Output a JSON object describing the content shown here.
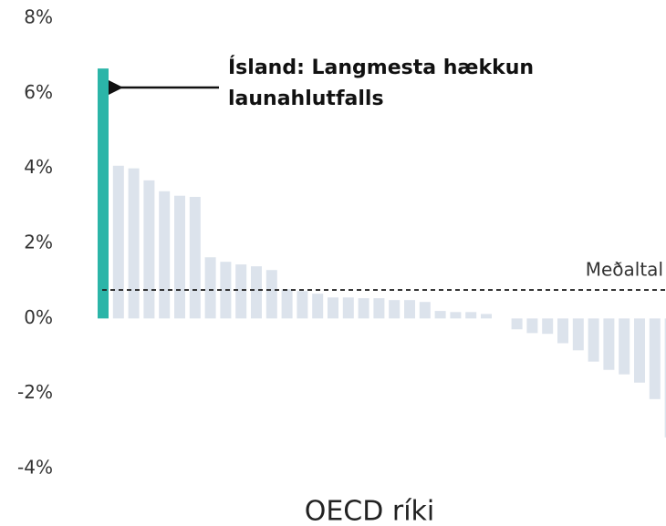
{
  "chart_data": {
    "type": "bar",
    "xlabel": "OECD ríki",
    "annotation": [
      "Ísland: Langmesta hækkun",
      "launahlutfalls"
    ],
    "mean": {
      "label": "Meðaltal",
      "value": 0.76
    },
    "categories": [
      null,
      null,
      null,
      null,
      null,
      null,
      null,
      null,
      null,
      null,
      null,
      null,
      null,
      null,
      null,
      null,
      null,
      null,
      null,
      null,
      null,
      null,
      null,
      null,
      null,
      null,
      null,
      null,
      null,
      null,
      null,
      null,
      null,
      null,
      null,
      null,
      null,
      null
    ],
    "values": [
      6.66,
      4.07,
      4.0,
      3.68,
      3.39,
      3.27,
      3.24,
      1.63,
      1.51,
      1.44,
      1.39,
      1.29,
      0.78,
      0.73,
      0.66,
      0.56,
      0.56,
      0.54,
      0.54,
      0.49,
      0.49,
      0.44,
      0.2,
      0.17,
      0.17,
      0.12,
      0,
      -0.29,
      -0.39,
      -0.41,
      -0.66,
      -0.85,
      -1.15,
      -1.37,
      -1.49,
      -1.71,
      -2.15,
      -3.17
    ],
    "color": "#dce3ec",
    "highlight": {
      "index": 0,
      "color": "#2bb5a8"
    },
    "ylim": [
      -4,
      8
    ],
    "yticks": [
      {
        "value": -4,
        "label": "-4%"
      },
      {
        "value": -2,
        "label": "-2%"
      },
      {
        "value": 0,
        "label": "0%"
      },
      {
        "value": 2,
        "label": "2%"
      },
      {
        "value": 4,
        "label": "4%"
      },
      {
        "value": 6,
        "label": "6%"
      },
      {
        "value": 8,
        "label": "8%"
      }
    ],
    "grid": false
  }
}
